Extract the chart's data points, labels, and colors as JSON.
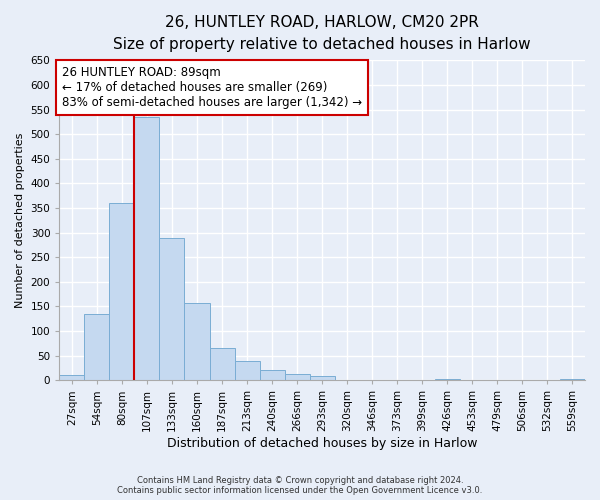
{
  "title": "26, HUNTLEY ROAD, HARLOW, CM20 2PR",
  "subtitle": "Size of property relative to detached houses in Harlow",
  "xlabel": "Distribution of detached houses by size in Harlow",
  "ylabel": "Number of detached properties",
  "bar_color": "#c5d9f0",
  "bar_edge_color": "#7aadd4",
  "categories": [
    "27sqm",
    "54sqm",
    "80sqm",
    "107sqm",
    "133sqm",
    "160sqm",
    "187sqm",
    "213sqm",
    "240sqm",
    "266sqm",
    "293sqm",
    "320sqm",
    "346sqm",
    "373sqm",
    "399sqm",
    "426sqm",
    "453sqm",
    "479sqm",
    "506sqm",
    "532sqm",
    "559sqm"
  ],
  "values": [
    10,
    135,
    360,
    535,
    290,
    157,
    66,
    40,
    20,
    13,
    8,
    0,
    0,
    0,
    0,
    3,
    0,
    0,
    0,
    0,
    3
  ],
  "ylim": [
    0,
    650
  ],
  "yticks": [
    0,
    50,
    100,
    150,
    200,
    250,
    300,
    350,
    400,
    450,
    500,
    550,
    600,
    650
  ],
  "vline_x": 2.5,
  "vline_color": "#cc0000",
  "annotation_line1": "26 HUNTLEY ROAD: 89sqm",
  "annotation_line2": "← 17% of detached houses are smaller (269)",
  "annotation_line3": "83% of semi-detached houses are larger (1,342) →",
  "annotation_box_color": "#ffffff",
  "annotation_box_edge_color": "#cc0000",
  "footer_line1": "Contains HM Land Registry data © Crown copyright and database right 2024.",
  "footer_line2": "Contains public sector information licensed under the Open Government Licence v3.0.",
  "background_color": "#e8eef8",
  "plot_background_color": "#e8eef8",
  "grid_color": "#ffffff",
  "title_fontsize": 11,
  "subtitle_fontsize": 9,
  "xlabel_fontsize": 9,
  "ylabel_fontsize": 8,
  "tick_fontsize": 7.5,
  "footer_fontsize": 6.0,
  "annotation_fontsize": 8.5
}
